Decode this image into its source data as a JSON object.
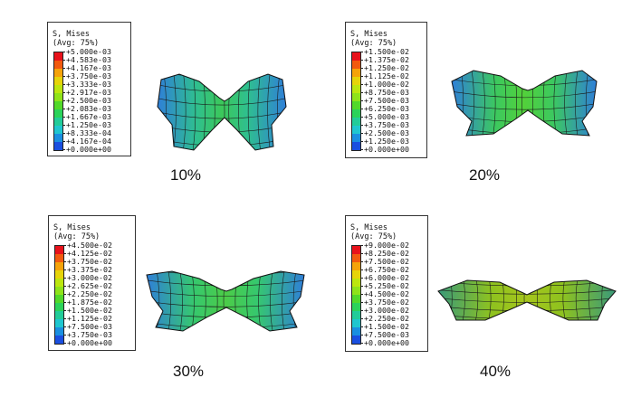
{
  "panels": [
    {
      "caption": "10%",
      "legend": {
        "title": "S, Mises",
        "subtitle": "(Avg: 75%)",
        "values": [
          "+5.000e-03",
          "+4.583e-03",
          "+4.167e-03",
          "+3.750e-03",
          "+3.333e-03",
          "+2.917e-03",
          "+2.500e-03",
          "+2.083e-03",
          "+1.667e-03",
          "+1.250e-03",
          "+8.333e-04",
          "+4.167e-04",
          "+0.000e+00"
        ]
      },
      "fill_level": 0.55
    },
    {
      "caption": "20%",
      "legend": {
        "title": "S, Mises",
        "subtitle": "(Avg: 75%)",
        "values": [
          "+1.500e-02",
          "+1.375e-02",
          "+1.250e-02",
          "+1.125e-02",
          "+1.000e-02",
          "+8.750e-03",
          "+7.500e-03",
          "+6.250e-03",
          "+5.000e-03",
          "+3.750e-03",
          "+2.500e-03",
          "+1.250e-03",
          "+0.000e+00"
        ]
      },
      "fill_level": 0.55
    },
    {
      "caption": "30%",
      "legend": {
        "title": "S, Mises",
        "subtitle": "(Avg: 75%)",
        "values": [
          "+4.500e-02",
          "+4.125e-02",
          "+3.750e-02",
          "+3.375e-02",
          "+3.000e-02",
          "+2.625e-02",
          "+2.250e-02",
          "+1.875e-02",
          "+1.500e-02",
          "+1.125e-02",
          "+7.500e-03",
          "+3.750e-03",
          "+0.000e+00"
        ]
      },
      "fill_level": 0.52
    },
    {
      "caption": "40%",
      "legend": {
        "title": "S, Mises",
        "subtitle": "(Avg: 75%)",
        "values": [
          "+9.000e-02",
          "+8.250e-02",
          "+7.500e-02",
          "+6.750e-02",
          "+6.000e-02",
          "+5.250e-02",
          "+4.500e-02",
          "+3.750e-02",
          "+3.000e-02",
          "+2.250e-02",
          "+1.500e-02",
          "+7.500e-03",
          "+0.000e+00"
        ]
      },
      "fill_level": 0.68
    }
  ],
  "colors": {
    "contour_scale": [
      "#e8121b",
      "#f25a0f",
      "#f5a30a",
      "#e6d40a",
      "#bce60f",
      "#8fe31a",
      "#52d92a",
      "#2bd35a",
      "#22cc99",
      "#1fc6cf",
      "#1a8fe0",
      "#1a4fe0"
    ]
  }
}
